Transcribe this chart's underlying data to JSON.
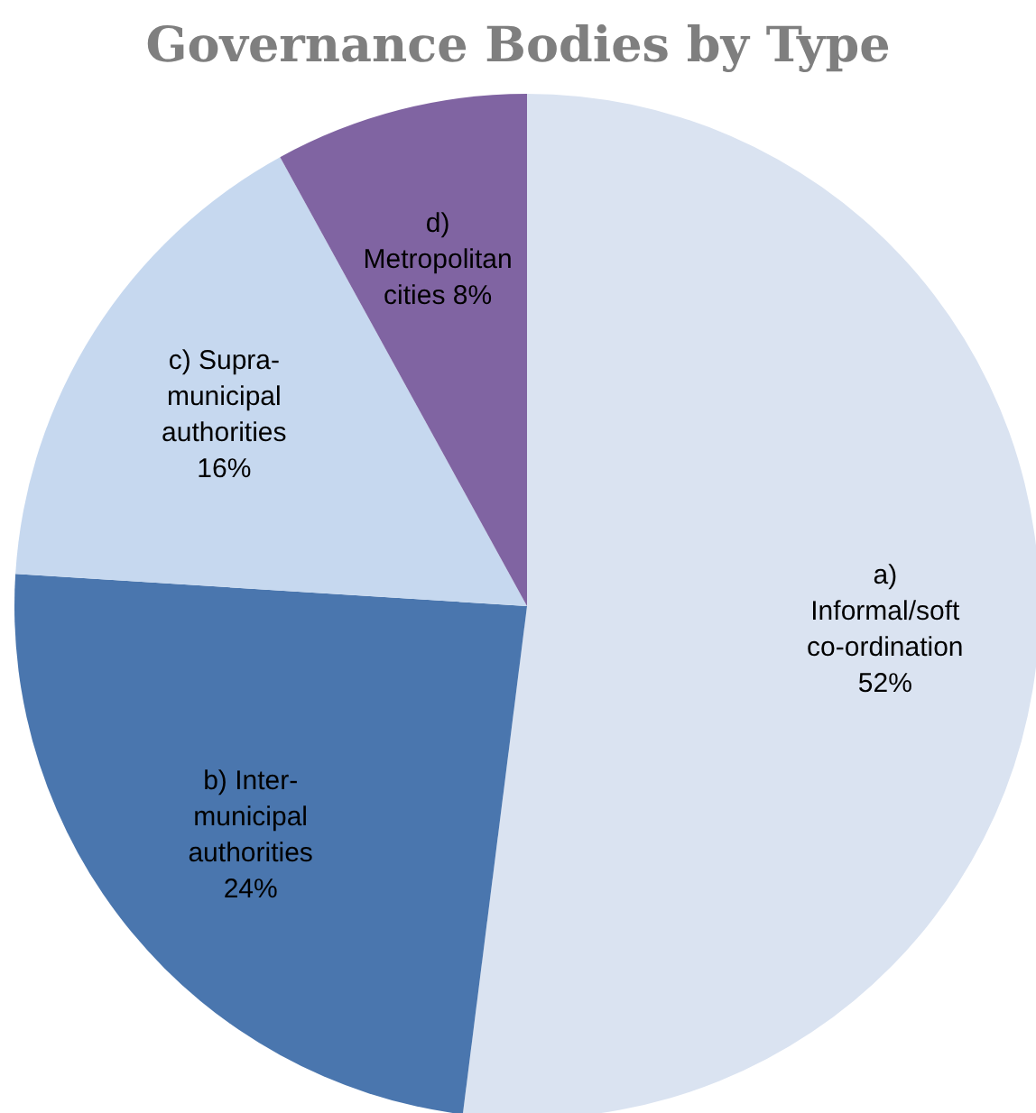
{
  "chart_data": {
    "type": "pie",
    "title": "Governance Bodies by Type",
    "categories": [
      "a) Informal/soft co-ordination",
      "b) Inter-municipal authorities",
      "c) Supra-municipal authorities",
      "d) Metropolitan cities"
    ],
    "values": [
      52,
      24,
      16,
      8
    ],
    "colors": [
      "#dae3f1",
      "#4a76ae",
      "#c6d8ef",
      "#8064a2"
    ],
    "value_labels": [
      "52%",
      "24%",
      "16%",
      "8%"
    ]
  }
}
